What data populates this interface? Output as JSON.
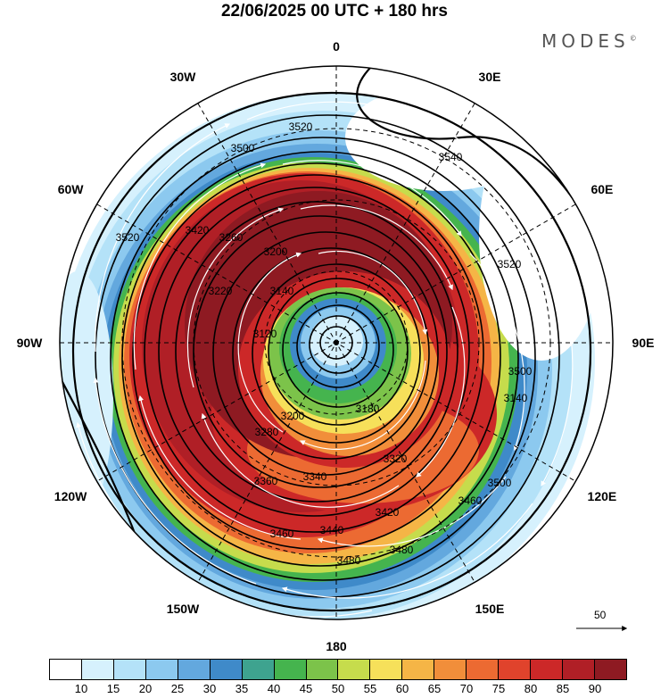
{
  "title": "22/06/2025  00 UTC  + 180 hrs",
  "brand": "MODES",
  "brand_mark": "©",
  "longitude_labels": [
    {
      "text": "0",
      "lon": 0
    },
    {
      "text": "30E",
      "lon": 30
    },
    {
      "text": "60E",
      "lon": 60
    },
    {
      "text": "90E",
      "lon": 90
    },
    {
      "text": "120E",
      "lon": 120
    },
    {
      "text": "150E",
      "lon": 150
    },
    {
      "text": "180",
      "lon": 180
    },
    {
      "text": "150W",
      "lon": -150
    },
    {
      "text": "120W",
      "lon": -120
    },
    {
      "text": "90W",
      "lon": -90
    },
    {
      "text": "60W",
      "lon": -60
    },
    {
      "text": "30W",
      "lon": -30
    }
  ],
  "contour_labels": [
    "3520",
    "3500",
    "3540",
    "3420",
    "3260",
    "3200",
    "3140",
    "3120",
    "3220",
    "3180",
    "3200",
    "3280",
    "3320",
    "3340",
    "3360",
    "3420",
    "3440",
    "3460",
    "3480",
    "3480",
    "3460",
    "3500",
    "3140",
    "3520",
    "3520",
    "3500"
  ],
  "colorbar": {
    "colors": [
      "#ffffff",
      "#d6f1fd",
      "#b4e2f8",
      "#8cc9ef",
      "#63a8de",
      "#3f8ac9",
      "#3ea38f",
      "#45b44e",
      "#7cc34a",
      "#c6dc4c",
      "#f6e05a",
      "#f5b546",
      "#f18e3a",
      "#ec6a32",
      "#e0432c",
      "#cc2828",
      "#b01f26",
      "#8e1a22"
    ],
    "ticks": [
      "10",
      "15",
      "20",
      "25",
      "30",
      "35",
      "40",
      "45",
      "50",
      "55",
      "60",
      "65",
      "70",
      "75",
      "80",
      "85",
      "90"
    ]
  },
  "reference_vector": "50"
}
